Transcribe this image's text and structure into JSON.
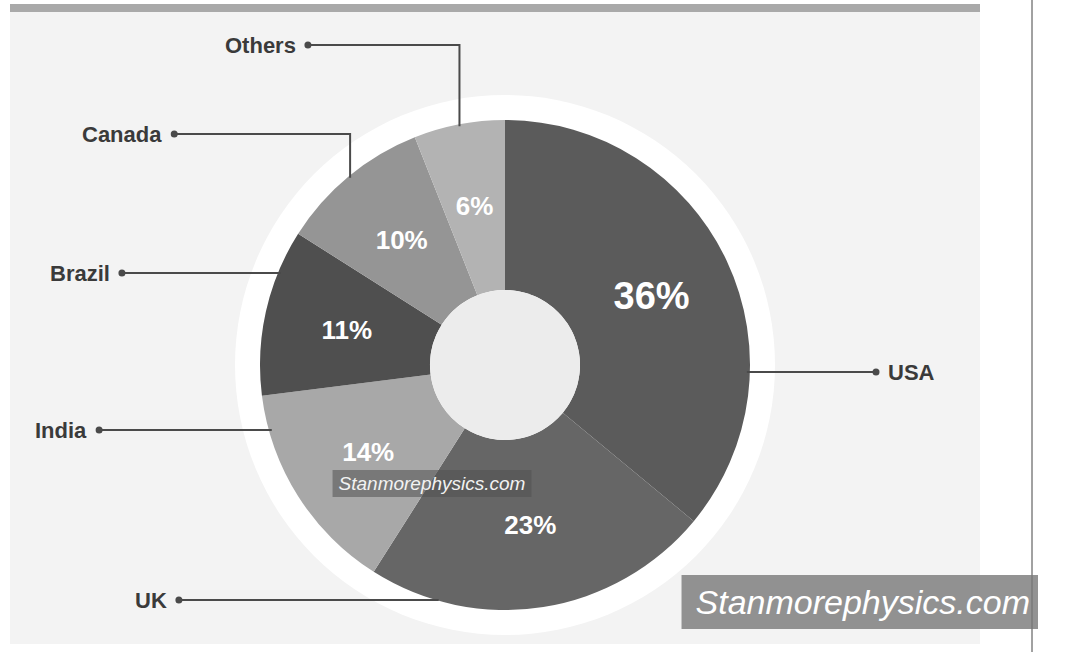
{
  "chart_data": {
    "type": "donut",
    "categories": [
      "USA",
      "UK",
      "India",
      "Brazil",
      "Canada",
      "Others"
    ],
    "values": [
      36,
      23,
      14,
      11,
      10,
      6
    ],
    "value_labels": [
      "36%",
      "23%",
      "14%",
      "11%",
      "10%",
      "6%"
    ],
    "colors": [
      "#5b5b5b",
      "#666666",
      "#a8a8a8",
      "#4f4f4f",
      "#959595",
      "#b3b3b3"
    ],
    "data_labels": true,
    "annotations": [
      "Stanmorephysics.com",
      "Stanmorephysics.com"
    ]
  }
}
